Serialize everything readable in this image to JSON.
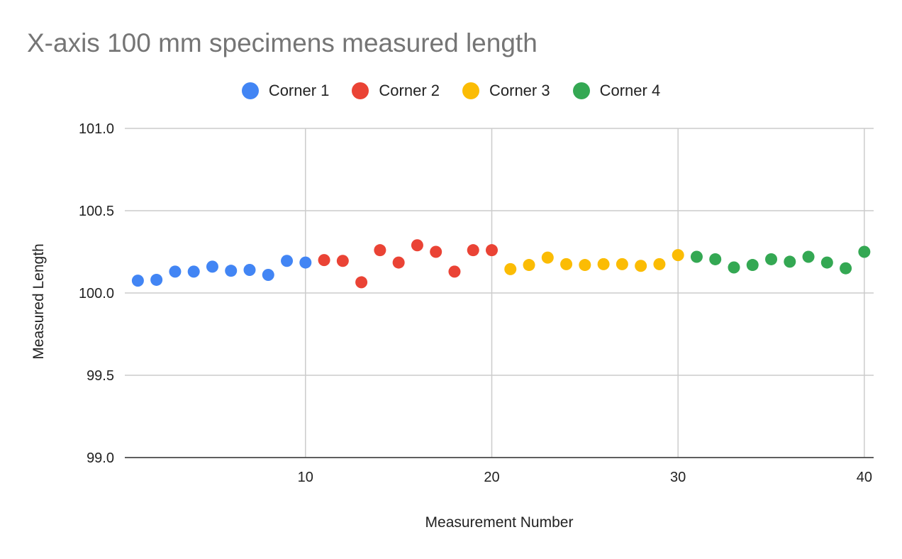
{
  "chart_data": {
    "type": "scatter",
    "title": "X-axis 100 mm specimens measured length",
    "xlabel": "Measurement Number",
    "ylabel": "Measured Length",
    "xlim": [
      0.3,
      40.5
    ],
    "ylim": [
      99.0,
      101.0
    ],
    "xticks": [
      "10",
      "20",
      "30",
      "40"
    ],
    "yticks": [
      "99.0",
      "99.5",
      "100.0",
      "100.5",
      "101.0"
    ],
    "grid": true,
    "legend_position": "top",
    "series": [
      {
        "name": "Corner 1",
        "color": "#4285f4",
        "x": [
          1,
          2,
          3,
          4,
          5,
          6,
          7,
          8,
          9,
          10
        ],
        "y": [
          100.075,
          100.08,
          100.13,
          100.13,
          100.16,
          100.135,
          100.14,
          100.11,
          100.195,
          100.185
        ]
      },
      {
        "name": "Corner 2",
        "color": "#ea4335",
        "x": [
          11,
          12,
          13,
          14,
          15,
          16,
          17,
          18,
          19,
          20
        ],
        "y": [
          100.2,
          100.195,
          100.065,
          100.26,
          100.185,
          100.29,
          100.25,
          100.13,
          100.26,
          100.26
        ]
      },
      {
        "name": "Corner 3",
        "color": "#fbbc04",
        "x": [
          21,
          22,
          23,
          24,
          25,
          26,
          27,
          28,
          29,
          30
        ],
        "y": [
          100.145,
          100.17,
          100.215,
          100.175,
          100.17,
          100.175,
          100.175,
          100.165,
          100.175,
          100.23
        ]
      },
      {
        "name": "Corner 4",
        "color": "#34a853",
        "x": [
          31,
          32,
          33,
          34,
          35,
          36,
          37,
          38,
          39,
          40
        ],
        "y": [
          100.22,
          100.205,
          100.155,
          100.17,
          100.205,
          100.19,
          100.22,
          100.185,
          100.15,
          100.25
        ]
      }
    ]
  }
}
